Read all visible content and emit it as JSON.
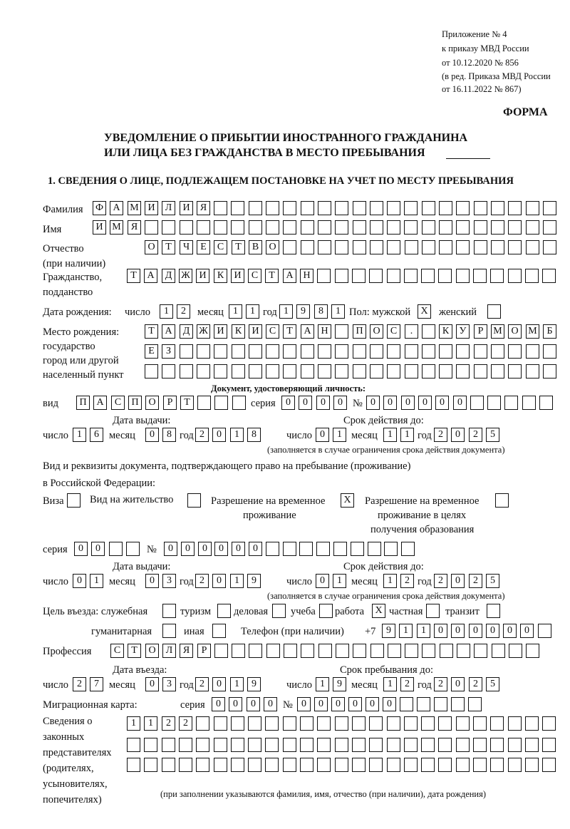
{
  "header": {
    "appendix": [
      "Приложение № 4",
      "к приказу МВД России",
      "от 10.12.2020 № 856"
    ],
    "revision": [
      "(в ред. Приказа МВД России",
      "от 16.11.2022 № 867)"
    ],
    "form_label": "ФОРМА",
    "title": [
      "УВЕДОМЛЕНИЕ О ПРИБЫТИИ ИНОСТРАННОГО ГРАЖДАНИНА",
      "ИЛИ ЛИЦА БЕЗ ГРАЖДАНСТВА В МЕСТО ПРЕБЫВАНИЯ"
    ],
    "section": "1. СВЕДЕНИЯ О ЛИЦЕ, ПОДЛЕЖАЩЕМ ПОСТАНОВКЕ НА УЧЕТ ПО МЕСТУ ПРЕБЫВАНИЯ"
  },
  "labels": {
    "surname": "Фамилия",
    "name": "Имя",
    "patronymic": [
      "Отчество",
      "(при наличии)"
    ],
    "citizenship": [
      "Гражданство,",
      "подданство"
    ],
    "birth_date": "Дата рождения:",
    "day": "число",
    "month": "месяц",
    "year": "год",
    "sex_male": "Пол: мужской",
    "sex_female": "женский",
    "birth_place": [
      "Место рождения:",
      "государство",
      "город или другой",
      "населенный пункт"
    ],
    "id_doc": "Документ, удостоверяющий личность:",
    "kind": "вид",
    "series": "серия",
    "number": "№",
    "issue_date": "Дата выдачи:",
    "valid_until": "Срок действия до:",
    "valid_note": "(заполняется в случае ограничения срока действия документа)",
    "residence_doc": [
      "Вид и реквизиты документа, подтверждающего право на пребывание (проживание)",
      "в Российской Федерации:"
    ],
    "visa": "Виза",
    "residence_permit": "Вид на жительство",
    "temp_residence": [
      "Разрешение на временное",
      "проживание"
    ],
    "temp_residence_edu": [
      "Разрешение на временное",
      "проживание в целях",
      "получения образования"
    ],
    "purpose": "Цель въезда: служебная",
    "tourism": "туризм",
    "business": "деловая",
    "study": "учеба",
    "work": "работа",
    "private": "частная",
    "transit": "транзит",
    "humanitarian": "гуманитарная",
    "other": "иная",
    "phone": "Телефон (при наличии)",
    "phone_prefix": "+7",
    "profession": "Профессия",
    "entry_date": "Дата въезда:",
    "stay_until": "Срок пребывания до:",
    "migration_card": "Миграционная карта:",
    "representatives": [
      "Сведения о",
      "законных",
      "представителях",
      "(родителях,",
      "усыновителях,",
      "попечителях)"
    ],
    "representatives_note": "(при заполнении указываются фамилия, имя, отчество (при наличии), дата рождения)"
  },
  "fields": {
    "surname": "ФАМИЛИЯ",
    "name": "ИМЯ",
    "patronymic": "ОТЧЕСТВО",
    "citizenship": "ТАДЖИКИСТАН",
    "birth_day": "12",
    "birth_month": "11",
    "birth_year": "1981",
    "sex_male": "X",
    "sex_female": " ",
    "birth_place_1": "ТАДЖИКИСТАН ПОС. КУРМОМБ",
    "birth_place_2": "ЕЗ",
    "birth_place_3": "",
    "id_kind": "ПАСПОРТ",
    "id_series": "0000",
    "id_number": "000000",
    "id_issue_day": "16",
    "id_issue_month": "08",
    "id_issue_year": "2018",
    "id_valid_day": "01",
    "id_valid_month": "11",
    "id_valid_year": "2025",
    "visa": " ",
    "residence_permit": " ",
    "temp_residence": "X",
    "temp_residence_edu": " ",
    "rd_series": "00",
    "rd_number": "000000",
    "rd_issue_day": "01",
    "rd_issue_month": "03",
    "rd_issue_year": "2019",
    "rd_valid_day": "01",
    "rd_valid_month": "12",
    "rd_valid_year": "2025",
    "p_official": " ",
    "p_tourism": " ",
    "p_business": " ",
    "p_study": " ",
    "p_work": "X",
    "p_private": " ",
    "p_transit": " ",
    "p_humanitarian": " ",
    "p_other": " ",
    "phone": "911000000",
    "profession": "СТОЛЯР",
    "entry_day": "27",
    "entry_month": "03",
    "entry_year": "2019",
    "stay_day": "19",
    "stay_month": "12",
    "stay_year": "2025",
    "mc_series": "0000",
    "mc_number": "000000",
    "rep_1": "1122",
    "rep_2": "",
    "rep_3": ""
  }
}
